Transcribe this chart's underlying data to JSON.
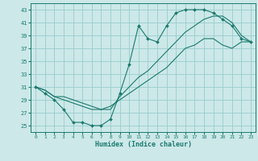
{
  "xlabel": "Humidex (Indice chaleur)",
  "bg_color": "#cce8e8",
  "grid_color": "#99cccc",
  "line_color": "#1a7a6e",
  "xlim": [
    -0.5,
    23.5
  ],
  "ylim": [
    24.0,
    44.0
  ],
  "xticks": [
    0,
    1,
    2,
    3,
    4,
    5,
    6,
    7,
    8,
    9,
    10,
    11,
    12,
    13,
    14,
    15,
    16,
    17,
    18,
    19,
    20,
    21,
    22,
    23
  ],
  "yticks": [
    25,
    27,
    29,
    31,
    33,
    35,
    37,
    39,
    41,
    43
  ],
  "series1_x": [
    0,
    1,
    2,
    3,
    4,
    5,
    6,
    7,
    8,
    9,
    10,
    11,
    12,
    13,
    14,
    15,
    16,
    17,
    18,
    19,
    20,
    21,
    22,
    23
  ],
  "series1_y": [
    31.0,
    30.0,
    29.0,
    27.5,
    25.5,
    25.5,
    25.0,
    25.0,
    26.0,
    30.0,
    34.5,
    40.5,
    38.5,
    38.0,
    40.5,
    42.5,
    43.0,
    43.0,
    43.0,
    42.5,
    41.5,
    40.5,
    38.5,
    38.0
  ],
  "series2_x": [
    0,
    1,
    2,
    3,
    4,
    5,
    6,
    7,
    8,
    9,
    10,
    11,
    12,
    13,
    14,
    15,
    16,
    17,
    18,
    19,
    20,
    21,
    22,
    23
  ],
  "series2_y": [
    31.0,
    30.5,
    29.5,
    29.0,
    28.5,
    28.0,
    27.5,
    27.5,
    28.0,
    29.0,
    30.0,
    31.0,
    32.0,
    33.0,
    34.0,
    35.5,
    37.0,
    37.5,
    38.5,
    38.5,
    37.5,
    37.0,
    38.0,
    38.0
  ],
  "series3_x": [
    0,
    1,
    2,
    3,
    4,
    5,
    6,
    7,
    8,
    9,
    10,
    11,
    12,
    13,
    14,
    15,
    16,
    17,
    18,
    19,
    20,
    21,
    22,
    23
  ],
  "series3_y": [
    31.0,
    30.5,
    29.5,
    29.5,
    29.0,
    28.5,
    28.0,
    27.5,
    27.5,
    29.5,
    31.0,
    32.5,
    33.5,
    35.0,
    36.5,
    38.0,
    39.5,
    40.5,
    41.5,
    42.0,
    42.0,
    41.0,
    39.0,
    38.0
  ]
}
